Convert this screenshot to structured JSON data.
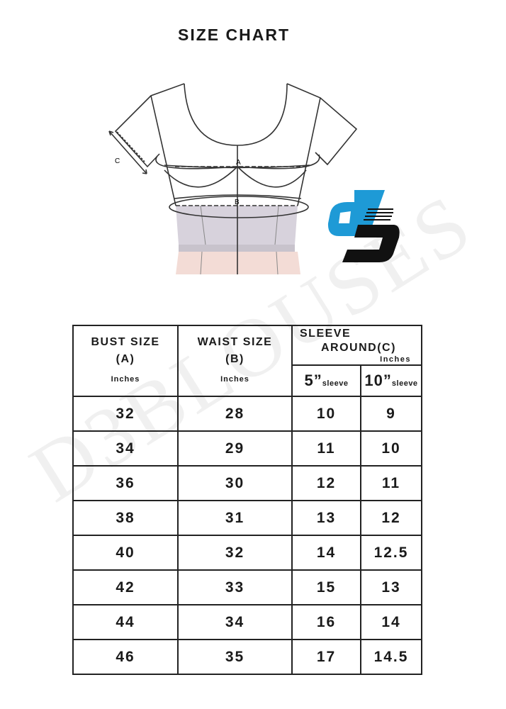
{
  "title": "SIZE CHART",
  "diagram": {
    "labels": [
      "A",
      "B",
      "C"
    ]
  },
  "watermark": "D3BLOUSES",
  "logo": {
    "colors": {
      "blue": "#1e9ad6",
      "black": "#111111"
    }
  },
  "table": {
    "headers": {
      "bust": {
        "label": "BUST SIZE",
        "letter": "(A)",
        "unit": "Inches"
      },
      "waist": {
        "label": "WAIST SIZE",
        "letter": "(B)",
        "unit": "Inches"
      },
      "sleeve": {
        "label1": "SLEEVE",
        "label2": "AROUND",
        "letter": "(C)",
        "unit": "Inches"
      },
      "sleeve_sub": [
        {
          "num": "5”",
          "unit": "sleeve"
        },
        {
          "num": "10”",
          "unit": "sleeve"
        }
      ]
    },
    "rows": [
      [
        "32",
        "28",
        "10",
        "9"
      ],
      [
        "34",
        "29",
        "11",
        "10"
      ],
      [
        "36",
        "30",
        "12",
        "11"
      ],
      [
        "38",
        "31",
        "13",
        "12"
      ],
      [
        "40",
        "32",
        "14",
        "12.5"
      ],
      [
        "42",
        "33",
        "15",
        "13"
      ],
      [
        "44",
        "34",
        "16",
        "14"
      ],
      [
        "46",
        "35",
        "17",
        "14.5"
      ]
    ]
  }
}
